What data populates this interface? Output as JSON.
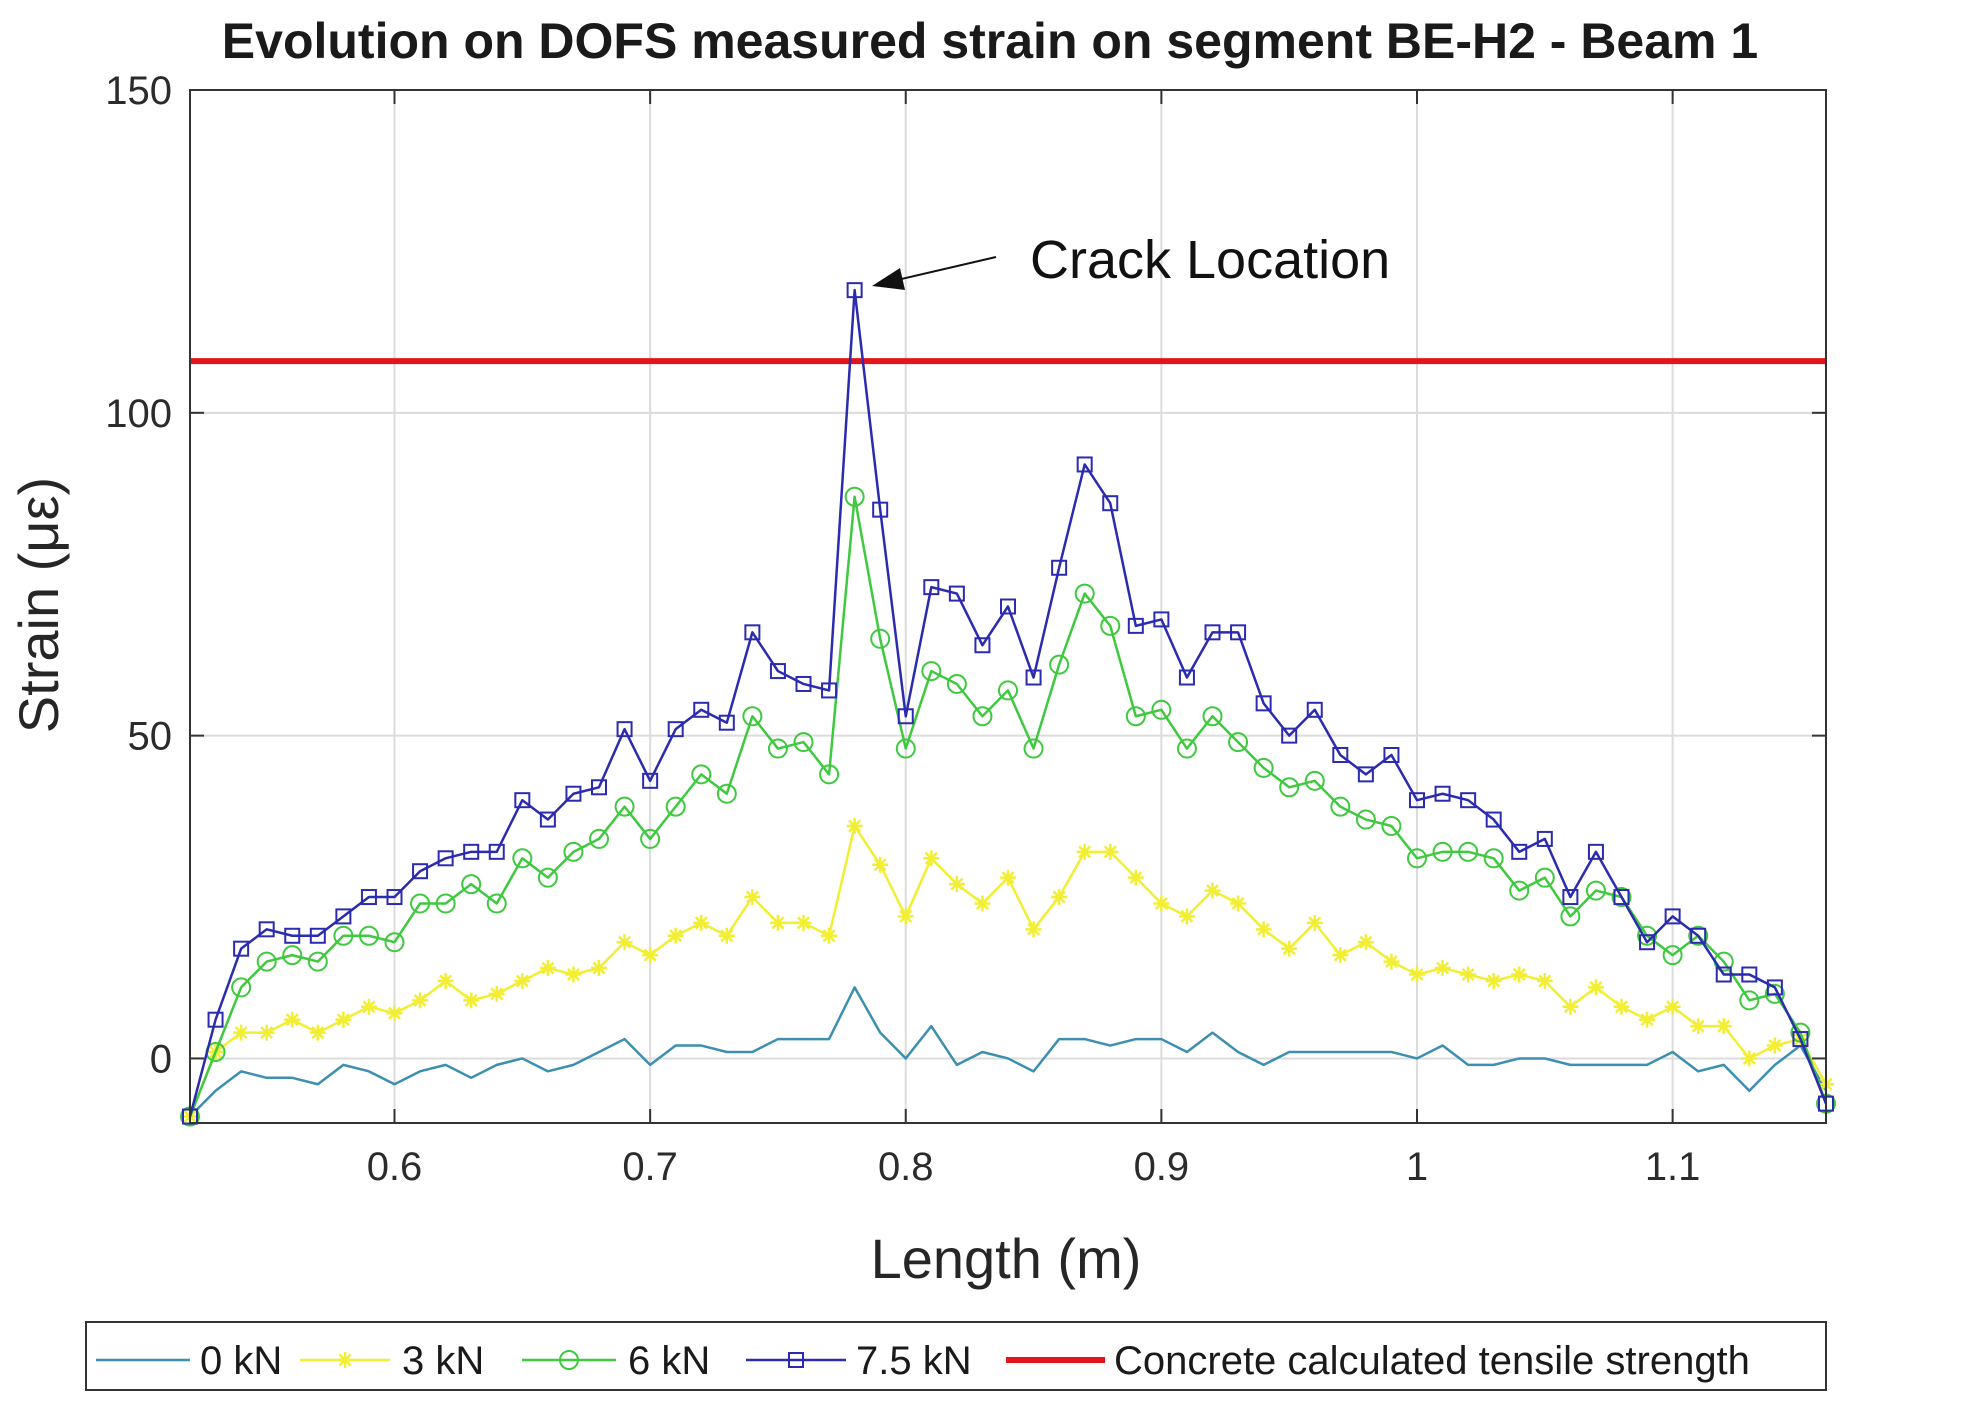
{
  "chart_data": {
    "type": "line",
    "title": "Evolution on DOFS measured strain on segment BE-H2 - Beam 1",
    "xlabel": "Length (m)",
    "ylabel": "Strain (με)",
    "xlim": [
      0.52,
      1.16
    ],
    "ylim": [
      -10,
      150
    ],
    "xticks": [
      0.6,
      0.7,
      0.8,
      0.9,
      1.0,
      1.1
    ],
    "xtick_labels": [
      "0.6",
      "0.7",
      "0.8",
      "0.9",
      "1",
      "1.1"
    ],
    "yticks": [
      0,
      50,
      100,
      150
    ],
    "ytick_labels": [
      "0",
      "50",
      "100",
      "150"
    ],
    "grid": true,
    "annotation": {
      "text": "Crack Location",
      "x": 0.78,
      "y": 119
    },
    "threshold": {
      "name": "Concrete calculated tensile strength",
      "value": 108,
      "color": "#e3141b"
    },
    "x": [
      0.52,
      0.53,
      0.54,
      0.55,
      0.56,
      0.57,
      0.58,
      0.59,
      0.6,
      0.61,
      0.62,
      0.63,
      0.64,
      0.65,
      0.66,
      0.67,
      0.68,
      0.69,
      0.7,
      0.71,
      0.72,
      0.73,
      0.74,
      0.75,
      0.76,
      0.77,
      0.78,
      0.79,
      0.8,
      0.81,
      0.82,
      0.83,
      0.84,
      0.85,
      0.86,
      0.87,
      0.88,
      0.89,
      0.9,
      0.91,
      0.92,
      0.93,
      0.94,
      0.95,
      0.96,
      0.97,
      0.98,
      0.99,
      1.0,
      1.01,
      1.02,
      1.03,
      1.04,
      1.05,
      1.06,
      1.07,
      1.08,
      1.09,
      1.1,
      1.11,
      1.12,
      1.13,
      1.14,
      1.15,
      1.16
    ],
    "series": [
      {
        "name": "0 kN",
        "color": "#3d8fb0",
        "marker": "none",
        "values": [
          -9,
          -5,
          -2,
          -3,
          -3,
          -4,
          -1,
          -2,
          -4,
          -2,
          -1,
          -3,
          -1,
          0,
          -2,
          -1,
          1,
          3,
          -1,
          2,
          2,
          1,
          1,
          3,
          3,
          3,
          11,
          4,
          0,
          5,
          -1,
          1,
          0,
          -2,
          3,
          3,
          2,
          3,
          3,
          1,
          4,
          1,
          -1,
          1,
          1,
          1,
          1,
          1,
          0,
          2,
          -1,
          -1,
          0,
          0,
          -1,
          -1,
          -1,
          -1,
          1,
          -2,
          -1,
          -5,
          -1,
          2,
          -5
        ]
      },
      {
        "name": "3 kN",
        "color": "#f2ee33",
        "marker": "star",
        "values": [
          -9,
          1,
          4,
          4,
          6,
          4,
          6,
          8,
          7,
          9,
          12,
          9,
          10,
          12,
          14,
          13,
          14,
          18,
          16,
          19,
          21,
          19,
          25,
          21,
          21,
          19,
          36,
          30,
          22,
          31,
          27,
          24,
          28,
          20,
          25,
          32,
          32,
          28,
          24,
          22,
          26,
          24,
          20,
          17,
          21,
          16,
          18,
          15,
          13,
          14,
          13,
          12,
          13,
          12,
          8,
          11,
          8,
          6,
          8,
          5,
          5,
          0,
          2,
          3,
          -4
        ]
      },
      {
        "name": "6 kN",
        "color": "#3ec93e",
        "marker": "circle",
        "values": [
          -9,
          1,
          11,
          15,
          16,
          15,
          19,
          19,
          18,
          24,
          24,
          27,
          24,
          31,
          28,
          32,
          34,
          39,
          34,
          39,
          44,
          41,
          53,
          48,
          49,
          44,
          87,
          65,
          48,
          60,
          58,
          53,
          57,
          48,
          61,
          72,
          67,
          53,
          54,
          48,
          53,
          49,
          45,
          42,
          43,
          39,
          37,
          36,
          31,
          32,
          32,
          31,
          26,
          28,
          22,
          26,
          25,
          19,
          16,
          19,
          15,
          9,
          10,
          4,
          -7
        ]
      },
      {
        "name": "7.5 kN",
        "color": "#2b2bb0",
        "marker": "square",
        "values": [
          -9,
          6,
          17,
          20,
          19,
          19,
          22,
          25,
          25,
          29,
          31,
          32,
          32,
          40,
          37,
          41,
          42,
          51,
          43,
          51,
          54,
          52,
          66,
          60,
          58,
          57,
          119,
          85,
          53,
          73,
          72,
          64,
          70,
          59,
          76,
          92,
          86,
          67,
          68,
          59,
          66,
          66,
          55,
          50,
          54,
          47,
          44,
          47,
          40,
          41,
          40,
          37,
          32,
          34,
          25,
          32,
          25,
          18,
          22,
          19,
          13,
          13,
          11,
          3,
          -7
        ]
      }
    ],
    "legend": {
      "placement": "bottom",
      "entries": [
        "0 kN",
        "3 kN",
        "6 kN",
        "7.5 kN",
        "Concrete calculated tensile strength"
      ]
    }
  }
}
